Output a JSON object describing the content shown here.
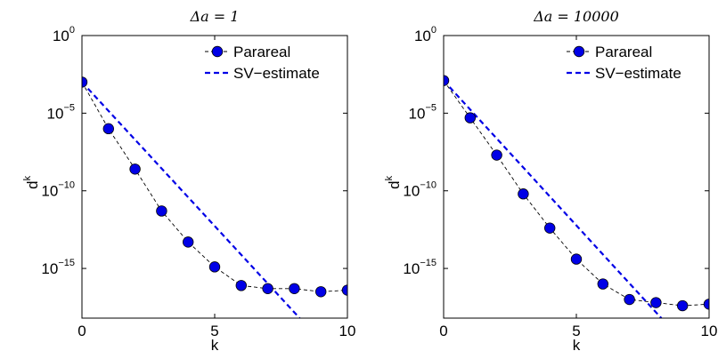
{
  "chart_data": [
    {
      "type": "line",
      "title": "Δa = 1",
      "xlabel": "k",
      "ylabel_base": "d",
      "ylabel_sup": "k",
      "xlim": [
        0,
        10
      ],
      "ylim_log10": [
        -18.2,
        0
      ],
      "y_scale": "log",
      "x_ticks": [
        0,
        5,
        10
      ],
      "y_ticks": [
        {
          "base": "10",
          "exp": "0",
          "log10": 0
        },
        {
          "base": "10",
          "exp": "−5",
          "log10": -5
        },
        {
          "base": "10",
          "exp": "−10",
          "log10": -10
        },
        {
          "base": "10",
          "exp": "−15",
          "log10": -15
        }
      ],
      "legend_position": "top-right",
      "series": [
        {
          "name": "Parareal",
          "color": "#0000e6",
          "style": "dashed-black-with-markers",
          "x": [
            0,
            1,
            2,
            3,
            4,
            5,
            6,
            7,
            8,
            9,
            10
          ],
          "y_log10": [
            -3.0,
            -6.0,
            -8.6,
            -11.3,
            -13.3,
            -14.9,
            -16.1,
            -16.3,
            -16.3,
            -16.5,
            -16.4
          ]
        },
        {
          "name": "SV−estimate",
          "color": "#0000e6",
          "style": "dashed",
          "x": [
            0,
            8.2
          ],
          "y_log10": [
            -3.0,
            -18.2
          ]
        }
      ]
    },
    {
      "type": "line",
      "title": "Δa = 10000",
      "xlabel": "k",
      "ylabel_base": "d",
      "ylabel_sup": "k",
      "xlim": [
        0,
        10
      ],
      "ylim_log10": [
        -18.2,
        0
      ],
      "y_scale": "log",
      "x_ticks": [
        0,
        5,
        10
      ],
      "y_ticks": [
        {
          "base": "10",
          "exp": "0",
          "log10": 0
        },
        {
          "base": "10",
          "exp": "−5",
          "log10": -5
        },
        {
          "base": "10",
          "exp": "−10",
          "log10": -10
        },
        {
          "base": "10",
          "exp": "−15",
          "log10": -15
        }
      ],
      "legend_position": "top-right",
      "series": [
        {
          "name": "Parareal",
          "color": "#0000e6",
          "style": "dashed-black-with-markers",
          "x": [
            0,
            1,
            2,
            3,
            4,
            5,
            6,
            7,
            8,
            9,
            10
          ],
          "y_log10": [
            -2.9,
            -5.3,
            -7.7,
            -10.2,
            -12.4,
            -14.4,
            -16.0,
            -17.0,
            -17.2,
            -17.4,
            -17.3
          ]
        },
        {
          "name": "SV−estimate",
          "color": "#0000e6",
          "style": "dashed",
          "x": [
            0,
            8.2
          ],
          "y_log10": [
            -2.9,
            -18.2
          ]
        }
      ]
    }
  ]
}
